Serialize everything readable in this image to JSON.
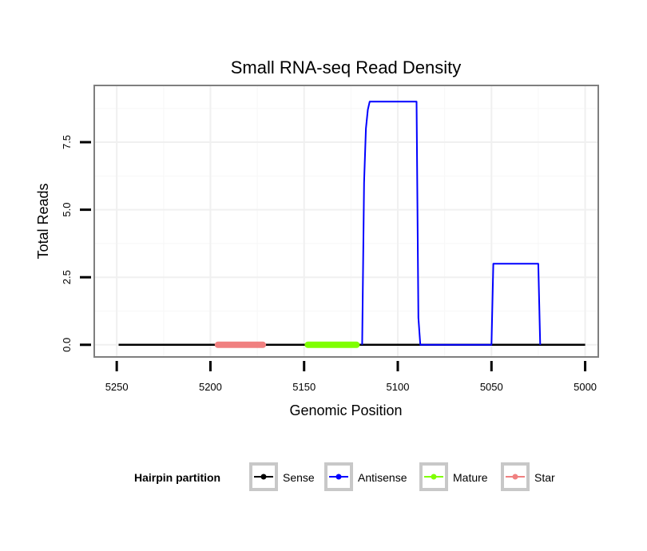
{
  "chart_data": {
    "type": "line",
    "title": "Small RNA-seq Read Density",
    "xlabel": "Genomic Position",
    "ylabel": "Total Reads",
    "x_reversed": true,
    "xlim": [
      5262,
      4993
    ],
    "ylim": [
      -0.45,
      9.6
    ],
    "x_ticks": [
      5250,
      5200,
      5150,
      5100,
      5050,
      5000
    ],
    "y_ticks": [
      0,
      2.5,
      5,
      7.5
    ],
    "y_tick_labels": [
      "0.0",
      "2.5",
      "5.0",
      "7.5"
    ],
    "grid": true,
    "legend": {
      "title": "Hairpin partition",
      "position": "bottom",
      "entries": [
        "Sense",
        "Antisense",
        "Mature",
        "Star"
      ]
    },
    "series": [
      {
        "name": "Sense",
        "color": "#000000",
        "x": [
          5249,
          5000
        ],
        "y": [
          0,
          0
        ]
      },
      {
        "name": "Antisense",
        "color": "#0000ff",
        "x": [
          5119,
          5118,
          5117,
          5116,
          5115,
          5114,
          5090,
          5089,
          5088,
          5050,
          5049,
          5025,
          5024
        ],
        "y": [
          0,
          6,
          8,
          8.7,
          9,
          9,
          9,
          1,
          0,
          0,
          3,
          3,
          0
        ]
      },
      {
        "name": "Mature",
        "color": "#7fff00",
        "x": [
          5148,
          5122
        ],
        "y": [
          0,
          0
        ]
      },
      {
        "name": "Star",
        "color": "#f08080",
        "x": [
          5196,
          5172
        ],
        "y": [
          0,
          0
        ]
      }
    ]
  }
}
